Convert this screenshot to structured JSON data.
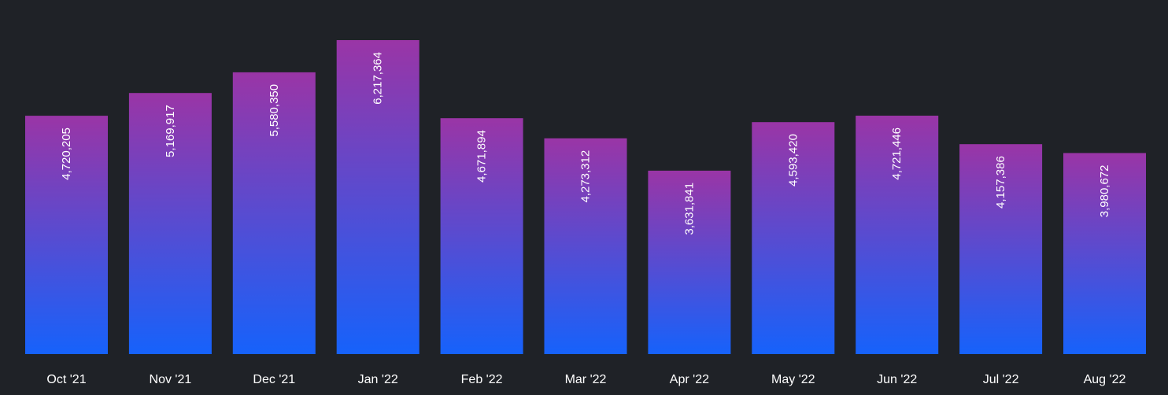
{
  "chart_data": {
    "type": "bar",
    "categories": [
      "Oct '21",
      "Nov '21",
      "Dec '21",
      "Jan '22",
      "Feb '22",
      "Mar '22",
      "Apr '22",
      "May '22",
      "Jun '22",
      "Jul '22",
      "Aug '22"
    ],
    "values": [
      4720205,
      5169917,
      5580350,
      6217364,
      4671894,
      4273312,
      3631841,
      4593420,
      4721446,
      4157386,
      3980672
    ],
    "value_labels": [
      "4,720,205",
      "5,169,917",
      "5,580,350",
      "6,217,364",
      "4,671,894",
      "4,273,312",
      "3,631,841",
      "4,593,420",
      "4,721,446",
      "4,157,386",
      "3,980,672"
    ],
    "ylim": [
      0,
      6217364
    ],
    "grid": false,
    "legend": "none",
    "colors": {
      "background": "#1f2227",
      "bar_top": "#9a35a6",
      "bar_bottom": "#1662fb",
      "text": "#ffffff"
    }
  }
}
